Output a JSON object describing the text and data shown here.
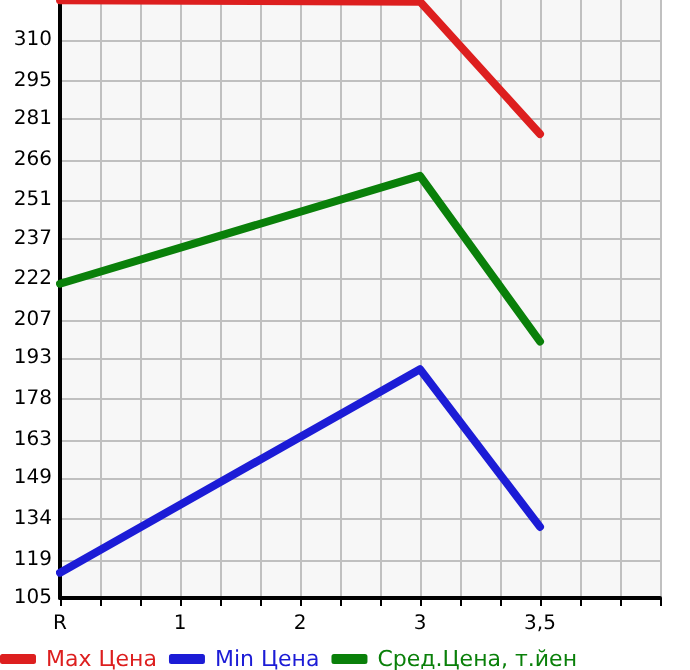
{
  "chart_data": {
    "type": "line",
    "categories": [
      "R",
      null,
      null,
      "1",
      null,
      null,
      "2",
      null,
      null,
      "3",
      null,
      null,
      "3,5",
      null,
      null,
      null
    ],
    "ylim": [
      105,
      324.6
    ],
    "yticks": [
      105,
      119,
      134,
      149,
      163,
      178,
      193,
      207,
      222,
      237,
      251,
      266,
      281,
      295,
      310
    ],
    "series": [
      {
        "name": "Max Цена",
        "color": "#dd1f1f",
        "values": [
          324.5,
          null,
          null,
          null,
          null,
          null,
          null,
          null,
          null,
          324,
          null,
          null,
          275.4,
          null,
          null,
          null
        ]
      },
      {
        "name": "Min Цена",
        "color": "#1c1cd6",
        "values": [
          114.3,
          null,
          null,
          null,
          null,
          null,
          null,
          null,
          null,
          189,
          null,
          null,
          131.1,
          null,
          null,
          null
        ]
      },
      {
        "name": "Сред.Цена, т.йен",
        "color": "#0a800a",
        "values": [
          220.4,
          null,
          null,
          null,
          null,
          null,
          null,
          null,
          null,
          260,
          null,
          null,
          199.2,
          null,
          null,
          null
        ]
      }
    ],
    "grid": true,
    "legend": "bottom",
    "marker": "none",
    "line_style": "solid"
  }
}
